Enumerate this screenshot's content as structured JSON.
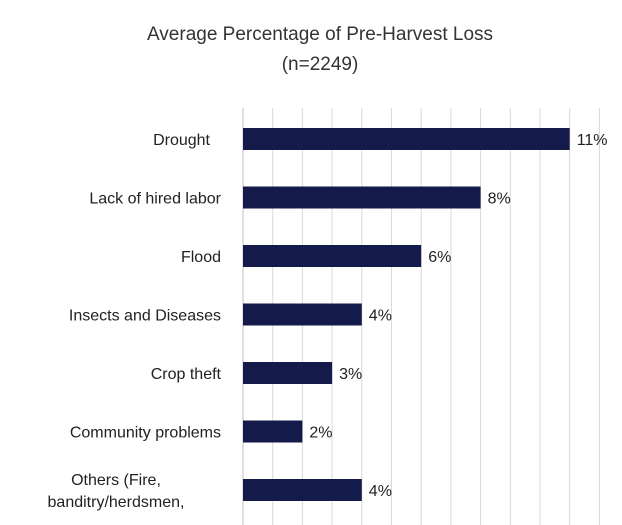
{
  "chart_data": {
    "type": "bar",
    "orientation": "horizontal",
    "title": "Average Percentage of Pre-Harvest Loss",
    "subtitle": "(n=2249)",
    "categories": [
      "Drought",
      "Lack of hired labor",
      "Flood",
      "Insects and Diseases",
      "Crop theft",
      "Community problems",
      "Others (Fire, banditry/herdsmen,"
    ],
    "values": [
      11,
      8,
      6,
      4,
      3,
      2,
      4
    ],
    "value_labels": [
      "11%",
      "8%",
      "6%",
      "4%",
      "3%",
      "2%",
      "4%"
    ],
    "xlim": [
      0,
      12
    ],
    "grid": true,
    "legend": "none",
    "bar_color": "#141a4a"
  }
}
